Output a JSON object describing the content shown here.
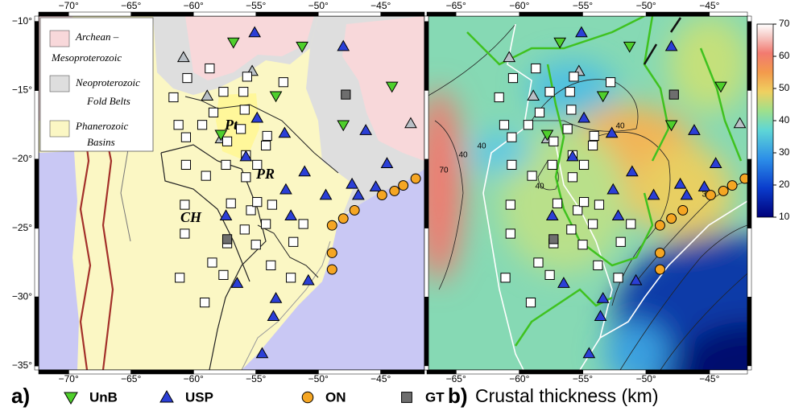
{
  "panels": [
    {
      "label": "a)",
      "xlim": [
        -72.4,
        -41.5
      ],
      "ylim": [
        -35.3,
        -9.6
      ],
      "xticks": [
        {
          "value": -70,
          "label": "−70°"
        },
        {
          "value": -65,
          "label": "−65°"
        },
        {
          "value": -60,
          "label": "−60°"
        },
        {
          "value": -55,
          "label": "−55°"
        },
        {
          "value": -50,
          "label": "−50°"
        },
        {
          "value": -45,
          "label": "−45°"
        }
      ],
      "yticks": [
        {
          "value": -10,
          "label": "−10°"
        },
        {
          "value": -15,
          "label": "−15°"
        },
        {
          "value": -20,
          "label": "−20°"
        },
        {
          "value": -25,
          "label": "−25°"
        },
        {
          "value": -30,
          "label": "−30°"
        },
        {
          "value": -35,
          "label": "−35°"
        }
      ],
      "legend": [
        {
          "lines": [
            "Archean –",
            "Mesoproterozoic"
          ],
          "color": "#f8d8da"
        },
        {
          "lines": [
            "Neoproterozoic",
            "Fold Belts"
          ],
          "color": "#dedede"
        },
        {
          "lines": [
            "Phanerozoic",
            "Basins"
          ],
          "color": "#fbf7c4"
        }
      ],
      "map_labels": [
        "Pt",
        "PR",
        "CH"
      ]
    },
    {
      "label": "b)",
      "title": "Crustal thickness (km)",
      "xlim": [
        -67.3,
        -42.0
      ],
      "ylim": [
        -35.3,
        -9.6
      ],
      "xticks": [
        {
          "value": -65,
          "label": "−65°"
        },
        {
          "value": -60,
          "label": "−60°"
        },
        {
          "value": -55,
          "label": "−55°"
        },
        {
          "value": -50,
          "label": "−50°"
        },
        {
          "value": -45,
          "label": "−45°"
        }
      ],
      "contour_labels": [
        "40",
        "40",
        "40",
        "40",
        "30",
        "70"
      ],
      "colorbar": {
        "lim": [
          10,
          70
        ],
        "ticks": [
          10,
          20,
          30,
          40,
          50,
          60,
          70
        ]
      }
    }
  ],
  "stations": [
    {
      "name": "UnB",
      "symbol": "triangle-down",
      "color": "#4fcf2c",
      "lon": [
        -56.8,
        -51.3,
        -44.1,
        -53.4,
        -48.0,
        -57.8
      ],
      "lat": [
        -11.5,
        -11.8,
        -14.7,
        -15.4,
        -17.5,
        -18.2
      ]
    },
    {
      "name": "USP",
      "symbol": "triangle",
      "color": "#2b3fd6",
      "lon": [
        -55.1,
        -48.0,
        -54.9,
        -52.7,
        -55.8,
        -46.2,
        -44.5,
        -51.1,
        -52.6,
        -49.4,
        -47.3,
        -46.8,
        -45.4,
        -57.4,
        -52.2,
        -56.5,
        -53.4,
        -50.8,
        -53.6,
        -54.5
      ],
      "lat": [
        -10.8,
        -11.8,
        -17.0,
        -18.1,
        -19.8,
        -17.9,
        -20.3,
        -20.9,
        -22.2,
        -22.6,
        -21.8,
        -22.6,
        -22.0,
        -24.1,
        -24.1,
        -29.0,
        -30.1,
        -28.8,
        -31.4,
        -34.1
      ]
    },
    {
      "name": "ON",
      "symbol": "circle",
      "color": "#f5a623",
      "lon": [
        -42.2,
        -43.2,
        -43.9,
        -44.9,
        -47.1,
        -48.0,
        -48.9,
        -48.9,
        -48.9
      ],
      "lat": [
        -21.4,
        -21.9,
        -22.3,
        -22.6,
        -23.7,
        -24.3,
        -24.8,
        -26.8,
        -28.0
      ]
    },
    {
      "name": "GT",
      "symbol": "square",
      "color": "#6e6e6e",
      "lon": [
        -47.8,
        -57.3
      ],
      "lat": [
        -15.3,
        -25.8
      ]
    },
    {
      "symbol": "triangle",
      "color": "#b9c0c6",
      "lon": [
        -60.8,
        -55.3,
        -58.9,
        -57.8,
        -42.6
      ],
      "lat": [
        -12.6,
        -13.6,
        -15.4,
        -18.5,
        -17.4
      ]
    },
    {
      "symbol": "square",
      "color": "#ffffff",
      "lon": [
        -60.5,
        -61.6,
        -58.7,
        -57.6,
        -55.7,
        -52.8,
        -56.0,
        -61.2,
        -59.3,
        -58.4,
        -56.2,
        -54.1,
        -55.9,
        -54.2,
        -57.3,
        -60.6,
        -60.6,
        -57.4,
        -55.8,
        -60.7,
        -55.8,
        -54.9,
        -59.0,
        -53.7,
        -57.0,
        -55.4,
        -54.9,
        -55.9,
        -60.7,
        -54.2,
        -51.2,
        -57.3,
        -58.5,
        -55.0,
        -52.0,
        -61.1,
        -57.6,
        -53.8,
        -59.1,
        -52.2
      ],
      "lat": [
        -14.1,
        -15.5,
        -13.4,
        -15.1,
        -14.0,
        -14.4,
        -15.1,
        -17.5,
        -17.5,
        -16.6,
        -17.8,
        -18.3,
        -16.4,
        -19.0,
        -18.7,
        -18.4,
        -20.4,
        -20.4,
        -19.7,
        -23.3,
        -21.3,
        -20.4,
        -21.2,
        -23.3,
        -23.2,
        -23.7,
        -23.1,
        -25.1,
        -25.4,
        -24.7,
        -24.7,
        -26.1,
        -27.5,
        -26.2,
        -26.0,
        -28.6,
        -28.4,
        -27.7,
        -30.4,
        -28.6
      ]
    }
  ]
}
